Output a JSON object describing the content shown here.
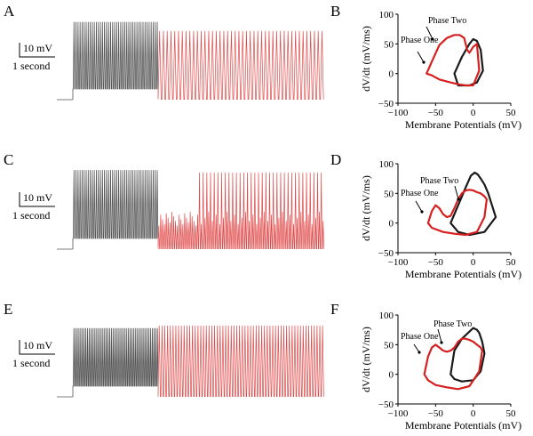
{
  "panels": [
    {
      "label": "A"
    },
    {
      "label": "B"
    },
    {
      "label": "C"
    },
    {
      "label": "D"
    },
    {
      "label": "E"
    },
    {
      "label": "F"
    }
  ],
  "scale_bar": {
    "voltage": "10 mV",
    "time": "1 second"
  },
  "colors": {
    "control": "#555555",
    "treated": "#e04a4a",
    "dark_loop": "#1a1a1a",
    "red_loop": "#d62020"
  },
  "chart_data": [
    {
      "type": "line",
      "panel": "A",
      "series": [
        {
          "segment": "gray",
          "spike_count": 42,
          "baseline_mV": -50,
          "peak_mV": 2
        },
        {
          "segment": "red",
          "spike_count": 44,
          "baseline_mV": -58,
          "peak_mV": -5
        }
      ]
    },
    {
      "type": "line",
      "panel": "B",
      "xlabel": "Membrane Potentials (mV)",
      "ylabel": "dV/dt (mV/ms)",
      "xlim": [
        -100,
        50
      ],
      "ylim": [
        -50,
        100
      ],
      "xticks": [
        "−100",
        "−50",
        "0",
        "50"
      ],
      "yticks": [
        "−50",
        "0",
        "50",
        "100"
      ],
      "annotations": [
        "Phase Two",
        "Phase One"
      ],
      "loops": [
        {
          "color": "dark",
          "x": [
            -25,
            -15,
            -5,
            0,
            5,
            10,
            13,
            5,
            -5,
            -20,
            -25
          ],
          "y": [
            0,
            28,
            50,
            58,
            55,
            40,
            5,
            -15,
            -20,
            -20,
            0
          ]
        },
        {
          "color": "red",
          "x": [
            -62,
            -55,
            -45,
            -35,
            -25,
            -18,
            -12,
            -8,
            -5,
            0,
            5,
            8,
            0,
            -10,
            -20,
            -30,
            -45,
            -55,
            -62
          ],
          "y": [
            0,
            20,
            48,
            60,
            65,
            65,
            60,
            40,
            35,
            45,
            50,
            5,
            -20,
            -20,
            -18,
            -15,
            -10,
            -3,
            0
          ]
        }
      ]
    },
    {
      "type": "line",
      "panel": "C",
      "series": [
        {
          "segment": "gray",
          "spike_count": 42,
          "baseline_mV": -50,
          "peak_mV": 3
        },
        {
          "segment": "red",
          "spike_count": 90,
          "baseline_mV": -58,
          "peak_mV": -5
        }
      ]
    },
    {
      "type": "line",
      "panel": "D",
      "xlabel": "Membrane Potentials (mV)",
      "ylabel": "dV/dt (mV/ms)",
      "xlim": [
        -100,
        50
      ],
      "ylim": [
        -50,
        100
      ],
      "xticks": [
        "−100",
        "−50",
        "0",
        "50"
      ],
      "yticks": [
        "−50",
        "0",
        "50",
        "100"
      ],
      "annotations": [
        "Phase Two",
        "Phase One"
      ],
      "loops": [
        {
          "color": "dark",
          "x": [
            -30,
            -20,
            -10,
            -3,
            2,
            6,
            10,
            15,
            20,
            25,
            30,
            15,
            -5,
            -20,
            -30
          ],
          "y": [
            0,
            30,
            60,
            80,
            85,
            82,
            75,
            65,
            50,
            30,
            10,
            -15,
            -20,
            -15,
            0
          ]
        },
        {
          "color": "red",
          "x": [
            -60,
            -55,
            -50,
            -45,
            -40,
            -35,
            -30,
            -25,
            -20,
            -15,
            -10,
            -5,
            0,
            5,
            10,
            15,
            18,
            15,
            5,
            -10,
            -25,
            -40,
            -55,
            -60
          ],
          "y": [
            0,
            20,
            30,
            25,
            15,
            10,
            12,
            25,
            40,
            50,
            55,
            56,
            55,
            52,
            50,
            45,
            40,
            10,
            -15,
            -20,
            -18,
            -15,
            -8,
            0
          ]
        }
      ]
    },
    {
      "type": "line",
      "panel": "E",
      "series": [
        {
          "segment": "gray",
          "spike_count": 50,
          "baseline_mV": -50,
          "peak_mV": -5
        },
        {
          "segment": "red",
          "spike_count": 60,
          "baseline_mV": -58,
          "peak_mV": -3
        }
      ]
    },
    {
      "type": "line",
      "panel": "F",
      "xlabel": "Membrane Potentials (mV)",
      "ylabel": "dV/dt (mV/ms)",
      "xlim": [
        -100,
        50
      ],
      "ylim": [
        -50,
        100
      ],
      "xticks": [
        "−100",
        "−50",
        "0",
        "50"
      ],
      "yticks": [
        "−50",
        "0",
        "50",
        "100"
      ],
      "annotations": [
        "Phase Two",
        "Phase One"
      ],
      "loops": [
        {
          "color": "dark",
          "x": [
            -30,
            -25,
            -15,
            -5,
            0,
            5,
            8,
            12,
            15,
            10,
            0,
            -15,
            -25,
            -30
          ],
          "y": [
            0,
            40,
            60,
            72,
            78,
            75,
            70,
            55,
            35,
            5,
            -10,
            -12,
            -8,
            0
          ]
        },
        {
          "color": "red",
          "x": [
            -65,
            -60,
            -55,
            -50,
            -45,
            -40,
            -35,
            -30,
            -25,
            -20,
            -15,
            -10,
            -5,
            0,
            5,
            10,
            12,
            8,
            -5,
            -20,
            -35,
            -50,
            -60,
            -65
          ],
          "y": [
            0,
            30,
            45,
            50,
            45,
            40,
            38,
            40,
            45,
            55,
            60,
            60,
            58,
            55,
            50,
            45,
            40,
            5,
            -20,
            -25,
            -22,
            -18,
            -10,
            0
          ]
        }
      ]
    }
  ]
}
